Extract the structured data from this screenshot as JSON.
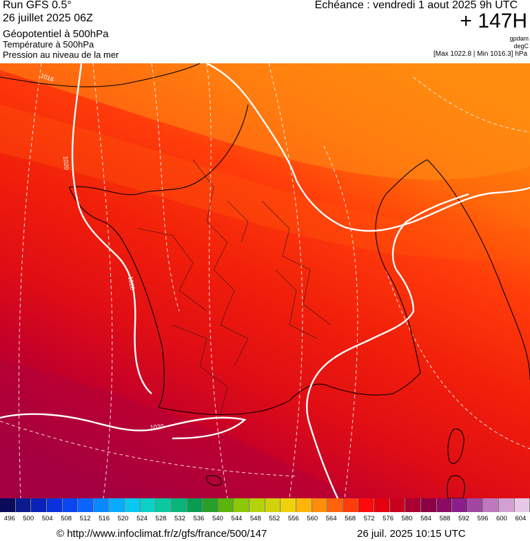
{
  "header": {
    "run_title": "Run GFS 0.5°",
    "run_date": "26 juillet 2025 06Z",
    "layers": [
      "Géopotentiel à 500hPa",
      "Température à 500hPa",
      "Pression au niveau de la mer"
    ],
    "valid_time": "Echéance : vendredi 1 aout 2025 9h UTC",
    "lead_time": "+ 147H",
    "units": [
      "gpdam",
      "degC"
    ],
    "pressure_range": "[Max 1022.8 | Min 1016.3] hPa"
  },
  "map": {
    "isobar_labels": [
      "1020",
      "1020",
      "1020",
      "1016"
    ],
    "colors": {
      "isobar": "#ffffff",
      "isotherm": "#ffffff",
      "coastline": "#000000",
      "border": "#1a1a1a"
    }
  },
  "scale": {
    "values": [
      "496",
      "500",
      "504",
      "508",
      "512",
      "516",
      "520",
      "524",
      "528",
      "532",
      "536",
      "540",
      "544",
      "548",
      "552",
      "556",
      "560",
      "564",
      "568",
      "572",
      "576",
      "580",
      "584",
      "588",
      "592",
      "596",
      "600",
      "604"
    ],
    "colors": [
      "#0a0a5a",
      "#0b1a8c",
      "#0a22b8",
      "#0a32dc",
      "#0a46f0",
      "#0a64ff",
      "#0a88ff",
      "#0aaaff",
      "#0ac8f0",
      "#0ad2c8",
      "#0ac8a0",
      "#0ab478",
      "#0a9c50",
      "#28a028",
      "#5ab40a",
      "#8cc80a",
      "#b4d20a",
      "#d2d20a",
      "#f0d20a",
      "#ffb40a",
      "#ff8c0a",
      "#ff640a",
      "#ff3c0a",
      "#ff0a0a",
      "#e6000f",
      "#c8001e",
      "#aa0032",
      "#8c0046",
      "#8c0a64",
      "#8c1e8c",
      "#a046a0",
      "#be78be",
      "#d2a0d2",
      "#e6c8e6"
    ]
  },
  "footer": {
    "credit": "© http://www.infoclimat.fr/z/gfs/france/500/147",
    "timestamp": "26 juil. 2025 10:15 UTC"
  }
}
